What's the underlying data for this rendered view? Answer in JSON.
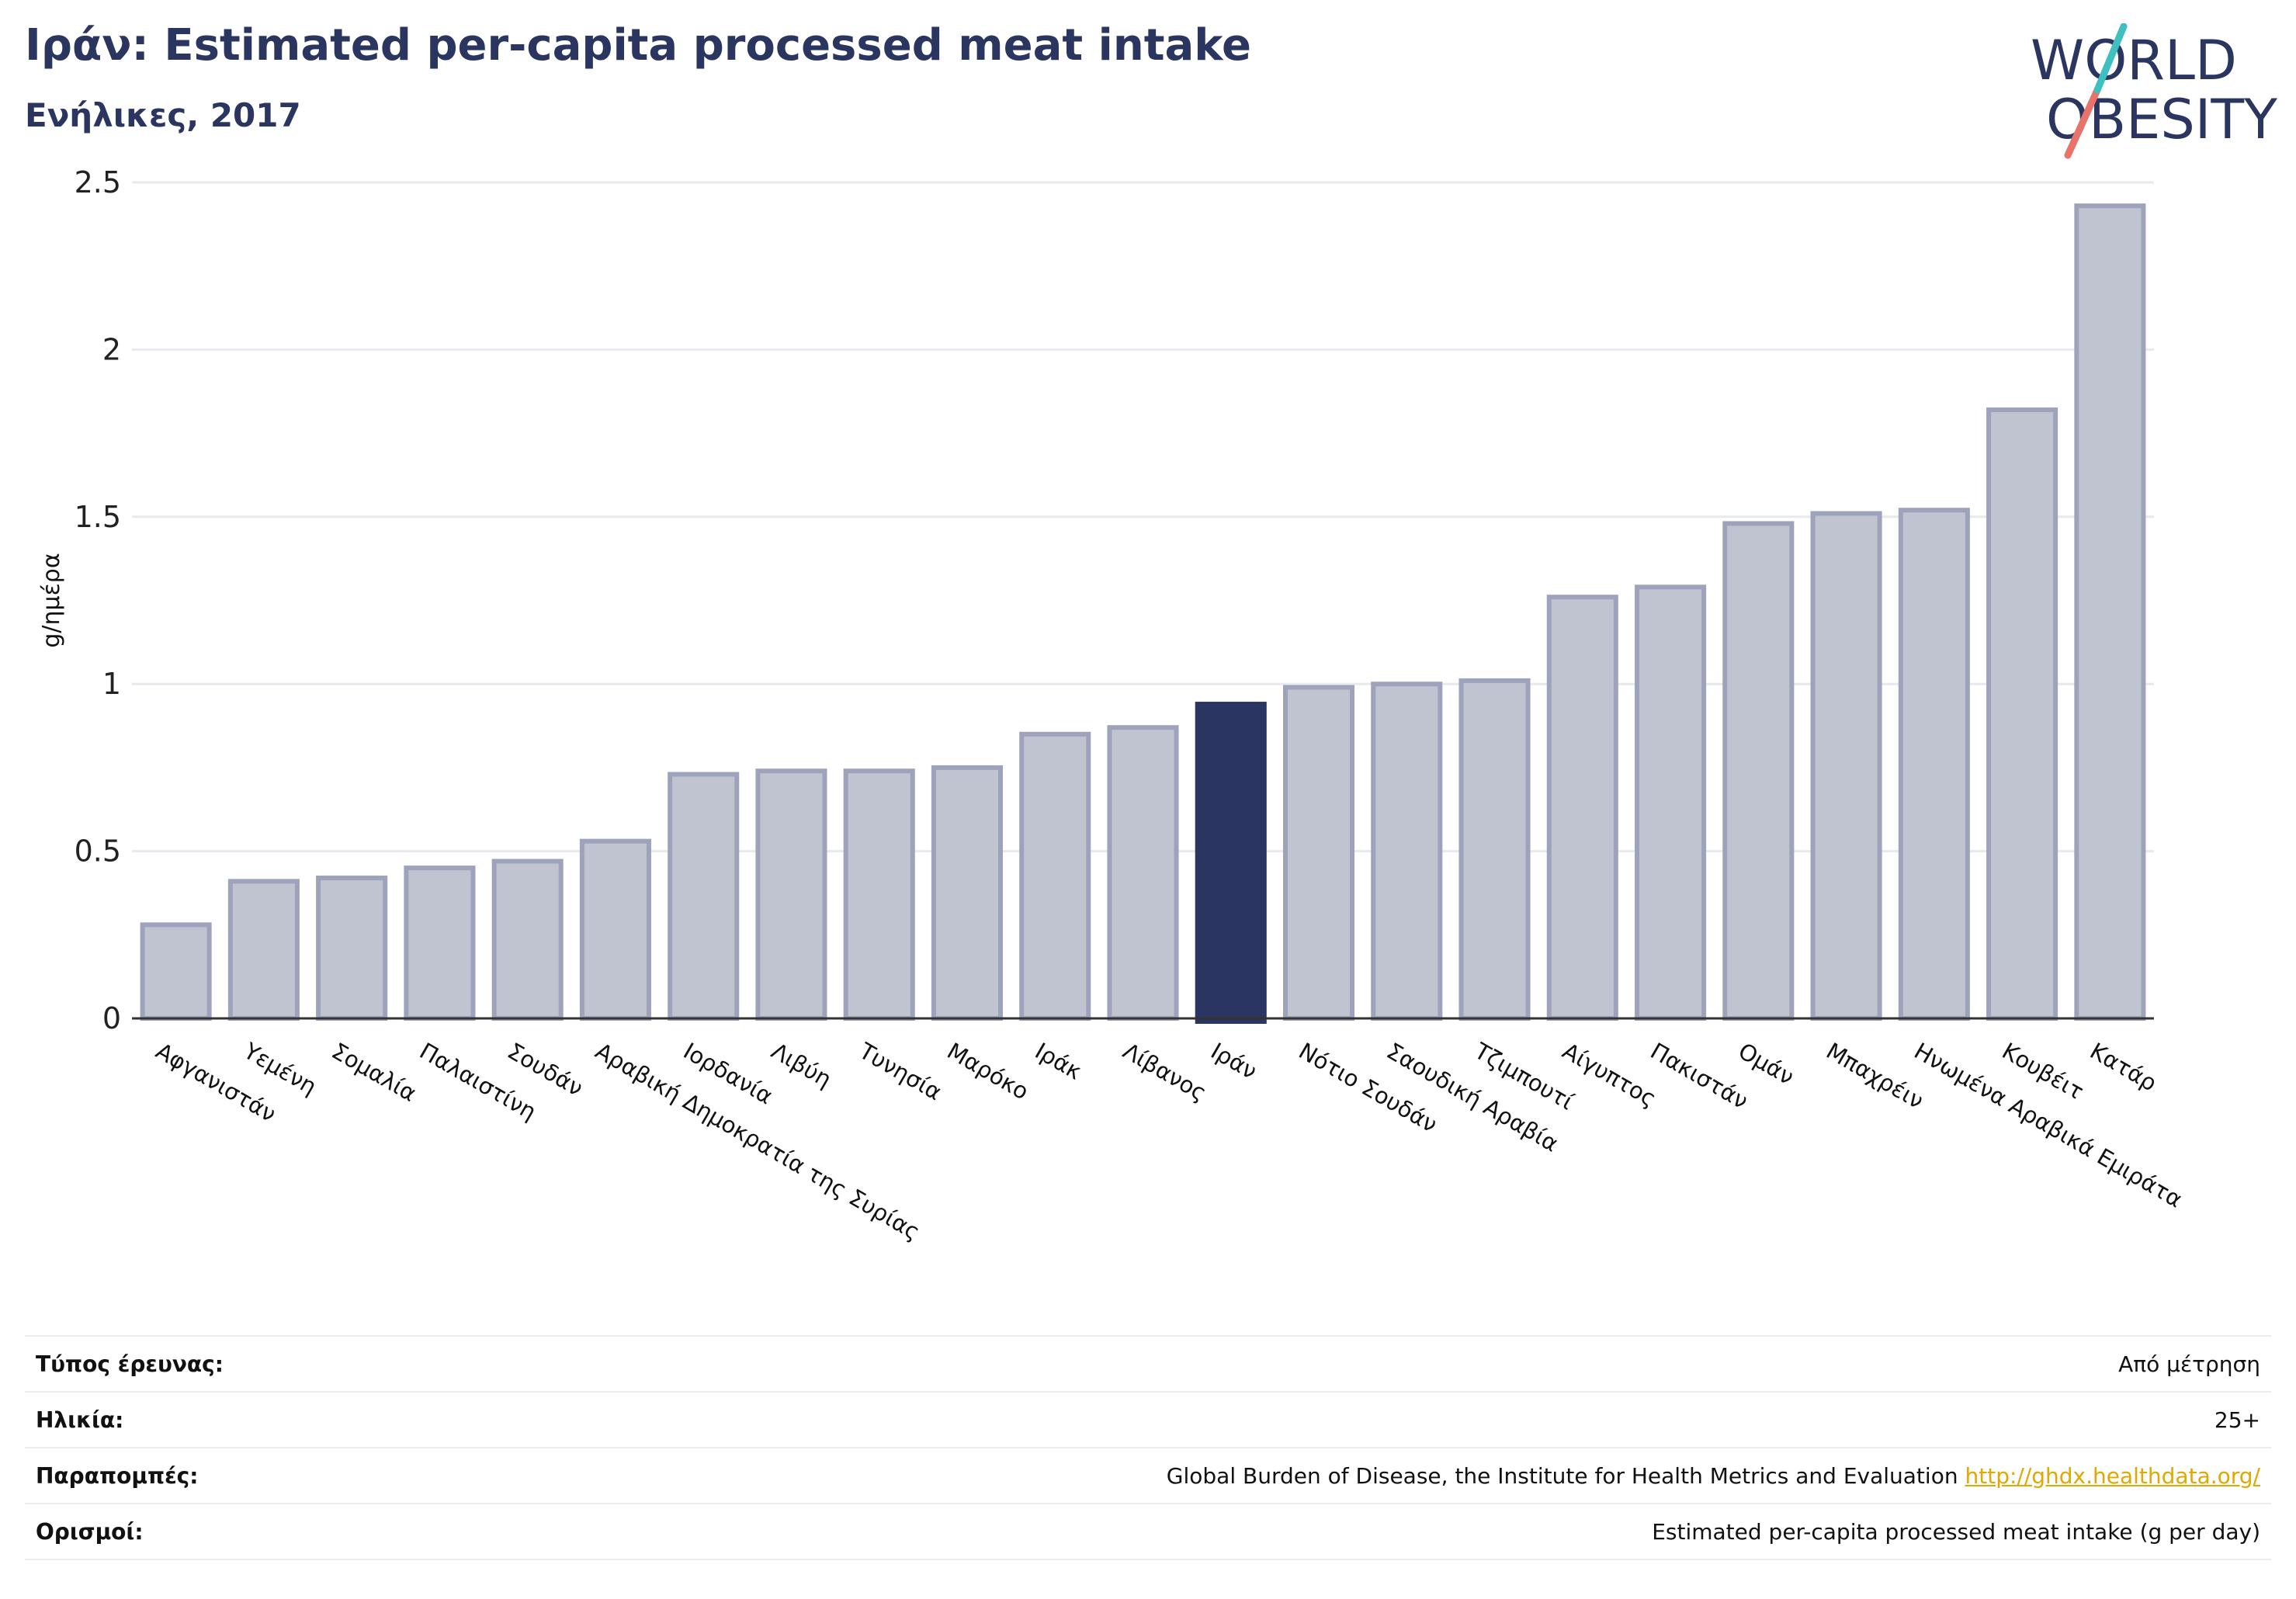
{
  "header": {
    "title": "Ιράν: Estimated per-capita processed meat intake",
    "subtitle": "Ενήλικες, 2017"
  },
  "logo": {
    "line1": "WORLD",
    "line2": "OBESITY"
  },
  "colors": {
    "bar": "#c0c3d0",
    "bar_stroke": "#9ea3bb",
    "highlight": "#2b3561",
    "text_dark": "#2a3560",
    "logo_teal": "#3fbfbf",
    "logo_coral": "#e8736a",
    "link": "#e0a800"
  },
  "chart_data": {
    "type": "bar",
    "ylabel": "g/ημέρα",
    "ylim": [
      0,
      2.5
    ],
    "yticks": [
      0,
      0.5,
      1,
      1.5,
      2,
      2.5
    ],
    "ytick_labels": [
      "0",
      "0.5",
      "1",
      "1.5",
      "2",
      "2.5"
    ],
    "grid": true,
    "highlight": "Ιράν",
    "categories": [
      "Αφγανιστάν",
      "Υεμένη",
      "Σομαλία",
      "Παλαιστίνη",
      "Σουδάν",
      "Αραβική Δημοκρατία της Συρίας",
      "Ιορδανία",
      "Λιβύη",
      "Τυνησία",
      "Μαρόκο",
      "Ιράκ",
      "Λίβανος",
      "Ιράν",
      "Νότιο Σουδάν",
      "Σαουδική Αραβία",
      "Τζιμπουτί",
      "Αίγυπτος",
      "Πακιστάν",
      "Ομάν",
      "Μπαχρέιν",
      "Ηνωμένα Αραβικά Εμιράτα",
      "Κουβέιτ",
      "Κατάρ"
    ],
    "values": [
      0.28,
      0.41,
      0.42,
      0.45,
      0.47,
      0.53,
      0.73,
      0.74,
      0.74,
      0.75,
      0.85,
      0.87,
      0.94,
      0.99,
      1.0,
      1.01,
      1.26,
      1.29,
      1.48,
      1.51,
      1.52,
      1.82,
      2.43
    ]
  },
  "info": {
    "rows": [
      {
        "key": "Τύπος έρευνας:",
        "value": "Από μέτρηση"
      },
      {
        "key": "Ηλικία:",
        "value": "25+"
      },
      {
        "key": "Παραπομπές:",
        "value": "Global Burden of Disease, the Institute for Health Metrics and Evaluation",
        "link": "http://ghdx.healthdata.org/"
      },
      {
        "key": "Ορισμοί:",
        "value": "Estimated per-capita processed meat intake (g per day)"
      }
    ]
  }
}
